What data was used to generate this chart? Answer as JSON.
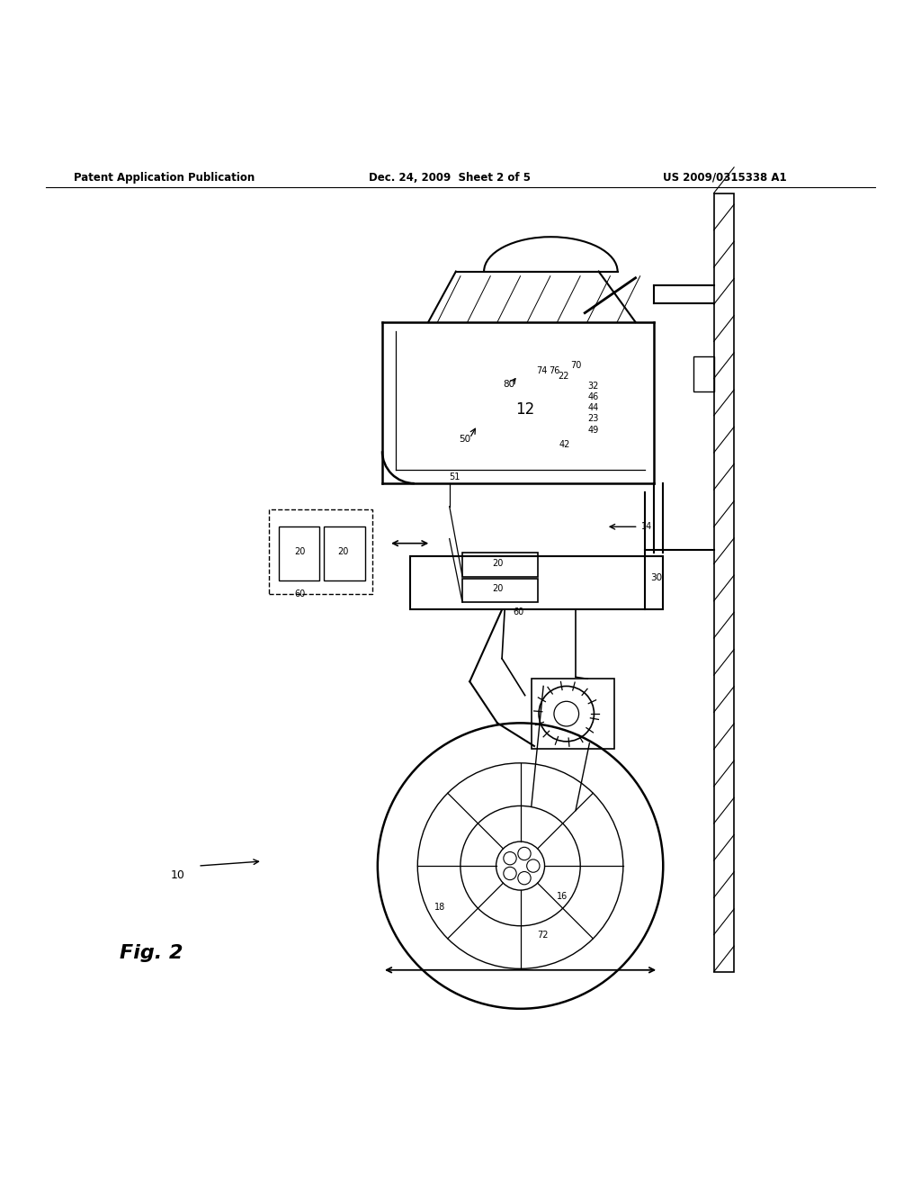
{
  "background_color": "#ffffff",
  "header_left": "Patent Application Publication",
  "header_mid": "Dec. 24, 2009  Sheet 2 of 5",
  "header_right": "US 2009/0315338 A1",
  "fig_label": "Fig. 2",
  "system_label": "10"
}
